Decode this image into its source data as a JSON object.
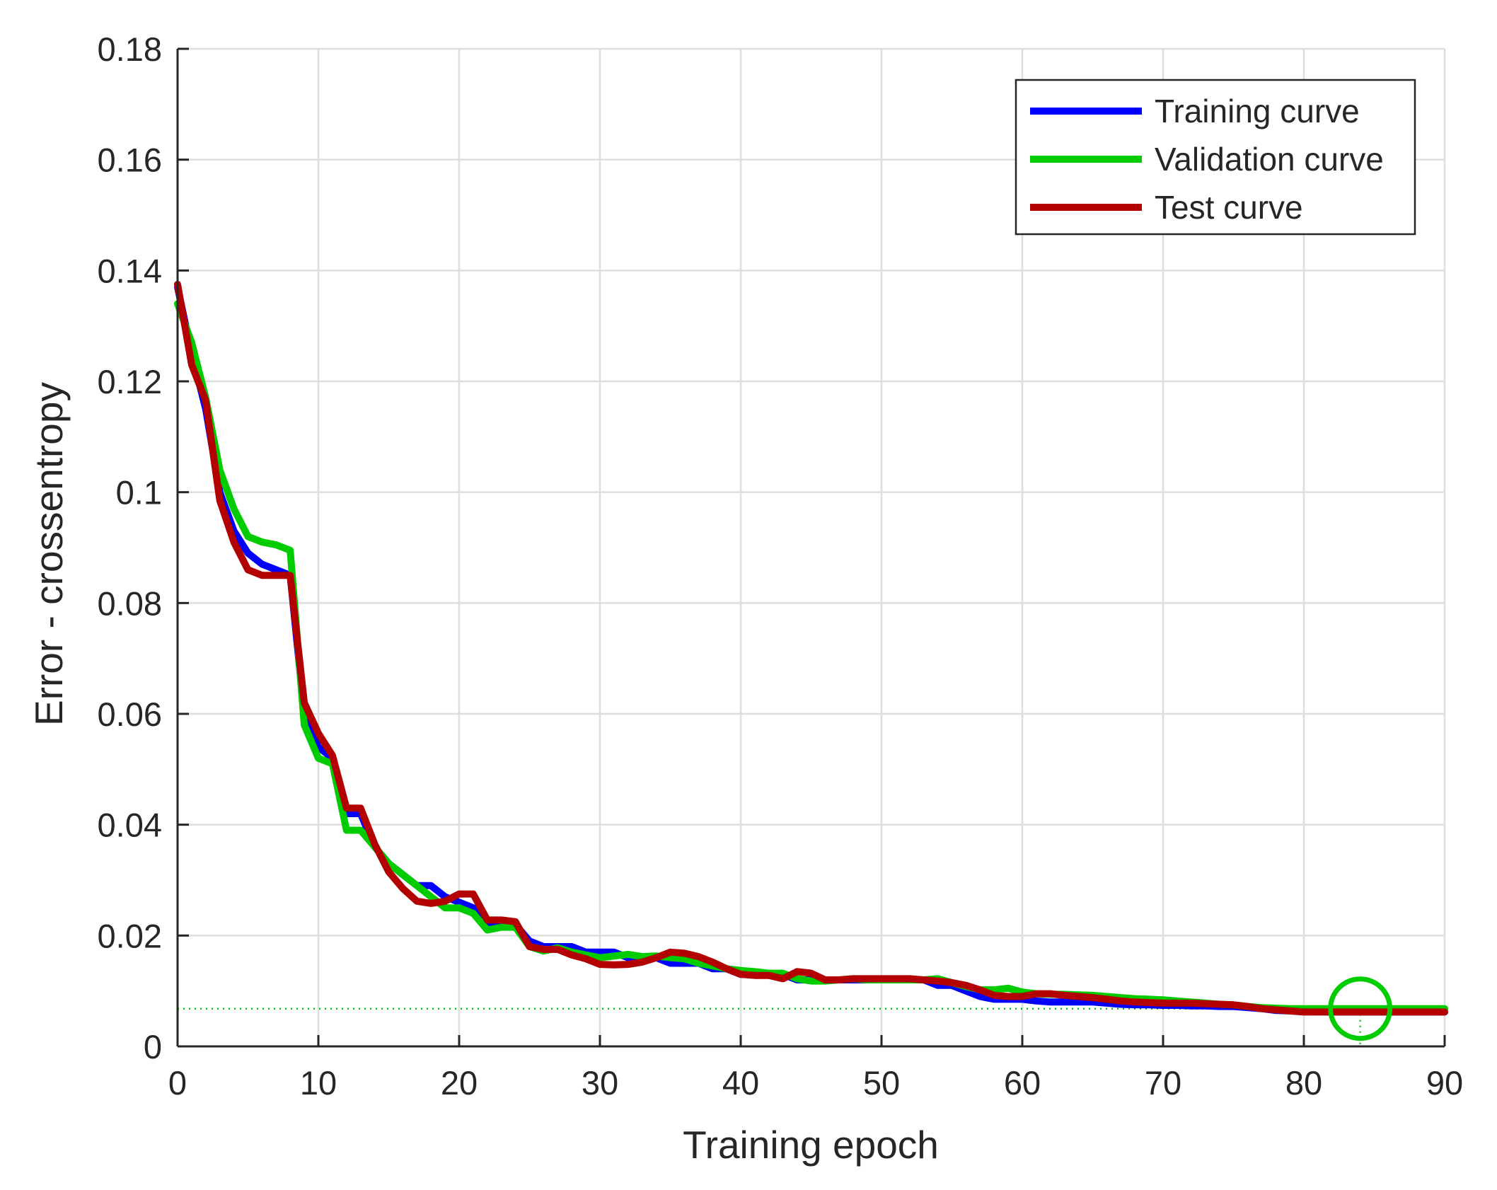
{
  "chart_data": {
    "type": "line",
    "title": "",
    "xlabel": "Training epoch",
    "ylabel": "Error - crossentropy",
    "xlim": [
      0,
      90
    ],
    "ylim": [
      0,
      0.18
    ],
    "xticks": [
      0,
      10,
      20,
      30,
      40,
      50,
      60,
      70,
      80,
      90
    ],
    "xtick_labels": [
      "0",
      "10",
      "20",
      "30",
      "40",
      "50",
      "60",
      "70",
      "80",
      "90"
    ],
    "yticks": [
      0,
      0.02,
      0.04,
      0.06,
      0.08,
      0.1,
      0.12,
      0.14,
      0.16,
      0.18
    ],
    "ytick_labels": [
      "0",
      "0.02",
      "0.04",
      "0.06",
      "0.08",
      "0.1",
      "0.12",
      "0.14",
      "0.16",
      "0.18"
    ],
    "grid": true,
    "legend_position": "top-right",
    "x": [
      0,
      1,
      2,
      3,
      4,
      5,
      6,
      7,
      8,
      9,
      10,
      11,
      12,
      13,
      14,
      15,
      16,
      17,
      18,
      19,
      20,
      21,
      22,
      23,
      24,
      25,
      26,
      27,
      28,
      29,
      30,
      31,
      32,
      33,
      34,
      35,
      36,
      37,
      38,
      39,
      40,
      41,
      42,
      43,
      44,
      45,
      46,
      47,
      48,
      49,
      50,
      51,
      52,
      53,
      54,
      55,
      56,
      57,
      58,
      59,
      60,
      61,
      62,
      63,
      64,
      65,
      66,
      67,
      68,
      69,
      70,
      71,
      72,
      73,
      74,
      75,
      76,
      77,
      78,
      79,
      80,
      81,
      82,
      83,
      84,
      85,
      86,
      87,
      88,
      89,
      90
    ],
    "series": [
      {
        "name": "Training curve",
        "color": "#0000ff",
        "values": [
          0.137,
          0.125,
          0.115,
          0.1,
          0.093,
          0.089,
          0.087,
          0.086,
          0.085,
          0.06,
          0.054,
          0.052,
          0.042,
          0.042,
          0.036,
          0.033,
          0.031,
          0.029,
          0.029,
          0.027,
          0.026,
          0.025,
          0.022,
          0.022,
          0.022,
          0.019,
          0.018,
          0.018,
          0.018,
          0.017,
          0.017,
          0.017,
          0.016,
          0.016,
          0.016,
          0.015,
          0.015,
          0.015,
          0.014,
          0.014,
          0.013,
          0.013,
          0.013,
          0.013,
          0.012,
          0.012,
          0.012,
          0.012,
          0.012,
          0.012,
          0.012,
          0.012,
          0.012,
          0.012,
          0.011,
          0.011,
          0.01,
          0.009,
          0.0085,
          0.0085,
          0.0085,
          0.0082,
          0.008,
          0.008,
          0.008,
          0.008,
          0.0078,
          0.0076,
          0.0075,
          0.0075,
          0.0074,
          0.0074,
          0.0073,
          0.0073,
          0.0072,
          0.0072,
          0.007,
          0.0068,
          0.0065,
          0.0064,
          0.0063,
          0.0063,
          0.0062,
          0.0062,
          0.0062,
          0.0062,
          0.0062,
          0.0062,
          0.0062,
          0.0062,
          0.0062
        ]
      },
      {
        "name": "Validation curve",
        "color": "#00cc00",
        "values": [
          0.134,
          0.127,
          0.117,
          0.104,
          0.097,
          0.092,
          0.091,
          0.0905,
          0.0895,
          0.058,
          0.052,
          0.051,
          0.039,
          0.039,
          0.036,
          0.033,
          0.031,
          0.029,
          0.027,
          0.025,
          0.025,
          0.024,
          0.021,
          0.0215,
          0.0215,
          0.018,
          0.0172,
          0.0178,
          0.017,
          0.0165,
          0.016,
          0.0163,
          0.0166,
          0.0162,
          0.0163,
          0.016,
          0.0158,
          0.015,
          0.0145,
          0.014,
          0.0137,
          0.0135,
          0.0132,
          0.0132,
          0.0122,
          0.0118,
          0.0118,
          0.012,
          0.0122,
          0.012,
          0.012,
          0.012,
          0.012,
          0.012,
          0.0122,
          0.0115,
          0.0108,
          0.0102,
          0.0102,
          0.0105,
          0.0098,
          0.0095,
          0.0094,
          0.0094,
          0.0093,
          0.0092,
          0.009,
          0.0088,
          0.0086,
          0.0085,
          0.0084,
          0.0082,
          0.008,
          0.0078,
          0.0076,
          0.0075,
          0.0072,
          0.007,
          0.0069,
          0.0068,
          0.0068,
          0.0068,
          0.0068,
          0.0068,
          0.0068,
          0.0068,
          0.0068,
          0.0068,
          0.0068,
          0.0068,
          0.0068
        ]
      },
      {
        "name": "Test curve",
        "color": "#b30000",
        "values": [
          0.1375,
          0.123,
          0.1165,
          0.0985,
          0.091,
          0.086,
          0.085,
          0.085,
          0.085,
          0.062,
          0.0565,
          0.0525,
          0.043,
          0.043,
          0.0365,
          0.0315,
          0.0285,
          0.0262,
          0.0258,
          0.0262,
          0.0275,
          0.0275,
          0.0228,
          0.0228,
          0.0225,
          0.018,
          0.0175,
          0.0175,
          0.0165,
          0.0158,
          0.0148,
          0.0147,
          0.0148,
          0.0152,
          0.016,
          0.017,
          0.0168,
          0.0162,
          0.0152,
          0.014,
          0.013,
          0.0128,
          0.0128,
          0.0122,
          0.0135,
          0.0132,
          0.012,
          0.012,
          0.0122,
          0.0122,
          0.0122,
          0.0122,
          0.0122,
          0.012,
          0.0118,
          0.0115,
          0.011,
          0.0102,
          0.0092,
          0.009,
          0.009,
          0.0095,
          0.0095,
          0.0092,
          0.009,
          0.0088,
          0.0085,
          0.0082,
          0.008,
          0.0079,
          0.0078,
          0.0078,
          0.0078,
          0.0077,
          0.0076,
          0.0075,
          0.0072,
          0.0068,
          0.0066,
          0.0064,
          0.0062,
          0.0062,
          0.0062,
          0.0062,
          0.0062,
          0.0062,
          0.0062,
          0.0062,
          0.0062,
          0.0062,
          0.0062
        ]
      }
    ],
    "best_epoch_marker": {
      "x": 84,
      "y": 0.0068,
      "color": "#00cc00"
    },
    "best_level_line": {
      "y": 0.0068,
      "color": "#00cc00",
      "style": "dotted"
    }
  }
}
